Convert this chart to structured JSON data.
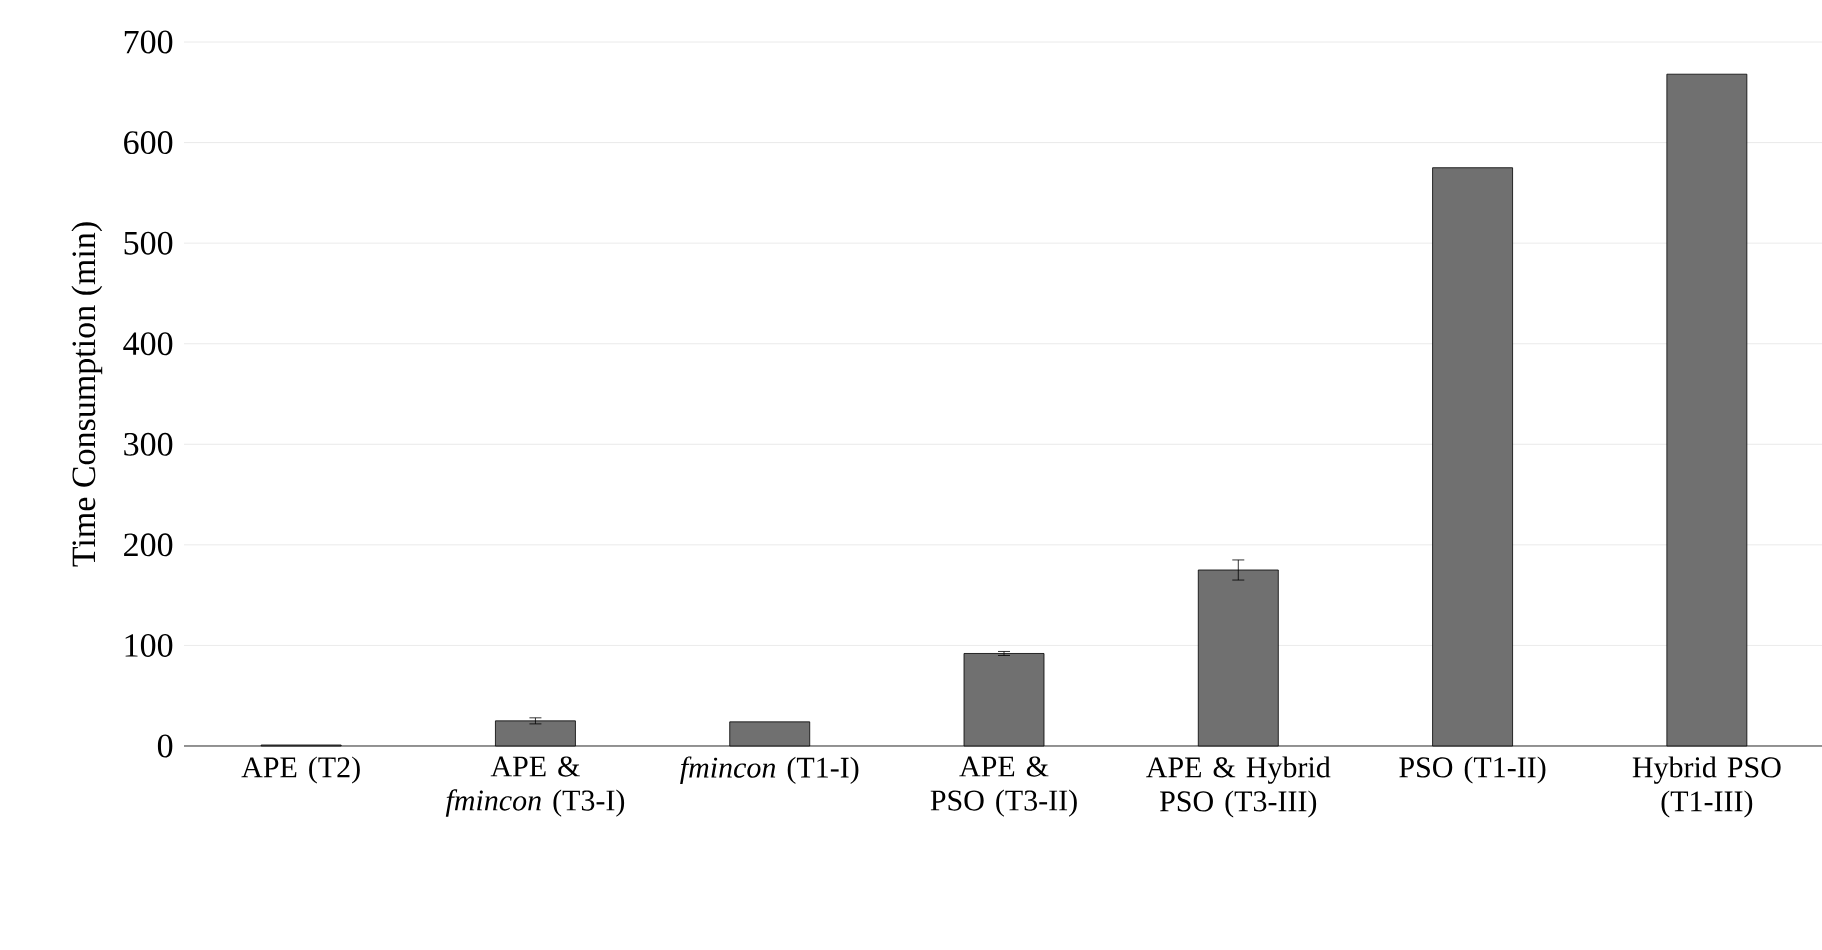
{
  "chart_data": {
    "type": "bar",
    "ylabel": "Time Consumption (min)",
    "categories": [
      "APE (T2)",
      "APE & *fmincon* (T3-I)",
      "*fmincon* (T1-I)",
      "APE & PSO (T3-II)",
      "APE & Hybrid PSO (T3-III)",
      "PSO (T1-II)",
      "Hybrid PSO (T1-III)"
    ],
    "values": [
      1,
      25,
      24,
      92,
      175,
      575,
      668
    ],
    "errors": [
      null,
      3,
      null,
      2,
      10,
      null,
      null
    ],
    "color": "#707070",
    "ylim": [
      0,
      700
    ],
    "yticks": [
      0,
      100,
      200,
      300,
      400,
      500,
      600,
      700
    ],
    "grid": "y"
  }
}
